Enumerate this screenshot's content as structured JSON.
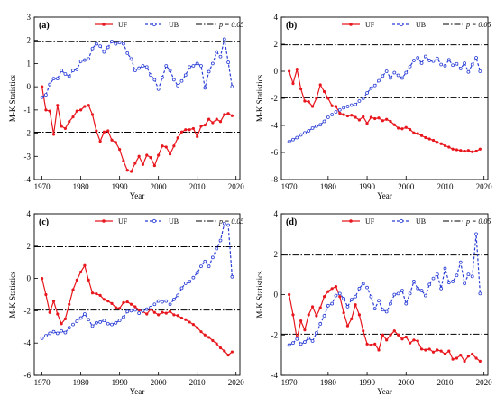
{
  "figure": {
    "colors": {
      "uf": "#e8161d",
      "ub": "#2b3fd6",
      "threshold": "#000000",
      "axis": "#000000"
    }
  },
  "chart_data": [
    {
      "type": "line",
      "panel_label": "(a)",
      "xlabel": "Year",
      "ylabel": "M-K Statistics",
      "xlim": [
        1968,
        2021
      ],
      "ylim": [
        -4,
        3
      ],
      "xticks": [
        1970,
        1980,
        1990,
        2000,
        2010,
        2020
      ],
      "yticks": [
        -4,
        -3,
        -2,
        -1,
        0,
        1,
        2,
        3
      ],
      "legend": {
        "position": "top",
        "entries": [
          "UF",
          "UB",
          "p = 0.05"
        ]
      },
      "thresholds": [
        1.96,
        -1.96
      ],
      "x": [
        1970,
        1971,
        1972,
        1973,
        1974,
        1975,
        1976,
        1977,
        1978,
        1979,
        1980,
        1981,
        1982,
        1983,
        1984,
        1985,
        1986,
        1987,
        1988,
        1989,
        1990,
        1991,
        1992,
        1993,
        1994,
        1995,
        1996,
        1997,
        1998,
        1999,
        2000,
        2001,
        2002,
        2003,
        2004,
        2005,
        2006,
        2007,
        2008,
        2009,
        2010,
        2011,
        2012,
        2013,
        2014,
        2015,
        2016,
        2017,
        2018,
        2019
      ],
      "series": [
        {
          "name": "UF",
          "values": [
            0.0,
            -1.0,
            -1.05,
            -2.05,
            -0.8,
            -1.7,
            -1.8,
            -1.5,
            -1.3,
            -1.05,
            -1.0,
            -0.85,
            -0.8,
            -1.2,
            -1.9,
            -2.35,
            -1.95,
            -1.9,
            -2.3,
            -2.4,
            -2.7,
            -3.2,
            -3.6,
            -3.65,
            -3.3,
            -3.0,
            -3.35,
            -2.95,
            -3.05,
            -3.4,
            -2.95,
            -2.55,
            -2.6,
            -2.9,
            -2.55,
            -2.2,
            -1.95,
            -1.85,
            -1.85,
            -1.8,
            -2.15,
            -1.7,
            -1.65,
            -1.4,
            -1.55,
            -1.4,
            -1.5,
            -1.2,
            -1.15,
            -1.25
          ]
        },
        {
          "name": "UB",
          "values": [
            -0.45,
            -0.35,
            0.1,
            0.35,
            0.35,
            0.7,
            0.55,
            0.45,
            0.7,
            0.75,
            1.1,
            1.15,
            1.2,
            1.65,
            1.85,
            1.75,
            1.5,
            1.7,
            1.95,
            1.85,
            1.9,
            1.85,
            1.45,
            1.2,
            0.7,
            0.8,
            0.9,
            0.85,
            0.5,
            0.3,
            -0.1,
            0.4,
            0.9,
            0.7,
            0.3,
            0.05,
            0.25,
            0.5,
            0.85,
            0.9,
            1.0,
            0.9,
            -0.05,
            0.65,
            1.0,
            1.5,
            1.3,
            2.05,
            1.05,
            0.0
          ]
        }
      ]
    },
    {
      "type": "line",
      "panel_label": "(b)",
      "xlabel": "Year",
      "ylabel": "M-K Statistics",
      "xlim": [
        1968,
        2021
      ],
      "ylim": [
        -8,
        4
      ],
      "xticks": [
        1970,
        1980,
        1990,
        2000,
        2010,
        2020
      ],
      "yticks": [
        -8,
        -6,
        -4,
        -2,
        0,
        2,
        4
      ],
      "legend": {
        "position": "top",
        "entries": [
          "UF",
          "UB",
          "p = 0.05"
        ]
      },
      "thresholds": [
        1.96,
        -1.96
      ],
      "x": [
        1970,
        1971,
        1972,
        1973,
        1974,
        1975,
        1976,
        1977,
        1978,
        1979,
        1980,
        1981,
        1982,
        1983,
        1984,
        1985,
        1986,
        1987,
        1988,
        1989,
        1990,
        1991,
        1992,
        1993,
        1994,
        1995,
        1996,
        1997,
        1998,
        1999,
        2000,
        2001,
        2002,
        2003,
        2004,
        2005,
        2006,
        2007,
        2008,
        2009,
        2010,
        2011,
        2012,
        2013,
        2014,
        2015,
        2016,
        2017,
        2018,
        2019
      ],
      "series": [
        {
          "name": "UF",
          "values": [
            0.0,
            -0.9,
            0.15,
            -1.3,
            -2.2,
            -2.25,
            -2.6,
            -2.0,
            -1.0,
            -1.5,
            -2.0,
            -2.55,
            -2.6,
            -3.1,
            -3.2,
            -3.3,
            -3.25,
            -3.4,
            -3.6,
            -3.35,
            -3.85,
            -3.4,
            -3.5,
            -3.45,
            -3.65,
            -3.55,
            -3.7,
            -3.95,
            -4.2,
            -4.25,
            -4.15,
            -4.3,
            -4.55,
            -4.6,
            -4.75,
            -4.9,
            -5.0,
            -5.1,
            -5.25,
            -5.35,
            -5.5,
            -5.6,
            -5.75,
            -5.8,
            -5.85,
            -5.9,
            -5.85,
            -5.95,
            -5.9,
            -5.75
          ]
        },
        {
          "name": "UB",
          "values": [
            -5.2,
            -5.05,
            -4.9,
            -4.7,
            -4.55,
            -4.4,
            -4.2,
            -4.05,
            -3.95,
            -3.7,
            -3.4,
            -3.2,
            -3.0,
            -2.85,
            -2.7,
            -2.6,
            -2.5,
            -2.45,
            -2.2,
            -2.0,
            -1.6,
            -1.25,
            -1.05,
            -0.7,
            -0.35,
            0.0,
            -0.5,
            -0.1,
            -0.3,
            -0.5,
            -0.1,
            0.35,
            0.8,
            1.0,
            0.6,
            1.1,
            0.8,
            0.75,
            0.95,
            0.5,
            0.4,
            0.85,
            0.45,
            0.55,
            0.2,
            0.6,
            -0.05,
            0.5,
            1.0,
            0.0
          ]
        }
      ]
    },
    {
      "type": "line",
      "panel_label": "(c)",
      "xlabel": "Year",
      "ylabel": "M-K Statistics",
      "xlim": [
        1968,
        2021
      ],
      "ylim": [
        -6,
        4
      ],
      "xticks": [
        1970,
        1980,
        1990,
        2000,
        2010,
        2020
      ],
      "yticks": [
        -6,
        -4,
        -2,
        0,
        2,
        4
      ],
      "legend": {
        "position": "top",
        "entries": [
          "UF",
          "UB",
          "p = 0.05"
        ]
      },
      "thresholds": [
        1.96,
        -1.96
      ],
      "x": [
        1970,
        1971,
        1972,
        1973,
        1974,
        1975,
        1976,
        1977,
        1978,
        1979,
        1980,
        1981,
        1982,
        1983,
        1984,
        1985,
        1986,
        1987,
        1988,
        1989,
        1990,
        1991,
        1992,
        1993,
        1994,
        1995,
        1996,
        1997,
        1998,
        1999,
        2000,
        2001,
        2002,
        2003,
        2004,
        2005,
        2006,
        2007,
        2008,
        2009,
        2010,
        2011,
        2012,
        2013,
        2014,
        2015,
        2016,
        2017,
        2018,
        2019
      ],
      "series": [
        {
          "name": "UF",
          "values": [
            0.0,
            -1.0,
            -2.1,
            -1.4,
            -2.2,
            -2.8,
            -2.5,
            -1.6,
            -0.7,
            -0.1,
            0.4,
            0.8,
            -0.1,
            -0.9,
            -0.95,
            -1.05,
            -1.3,
            -1.4,
            -1.55,
            -1.8,
            -1.85,
            -1.5,
            -1.45,
            -1.6,
            -1.75,
            -1.95,
            -2.05,
            -2.2,
            -1.9,
            -2.1,
            -2.25,
            -2.1,
            -2.15,
            -2.05,
            -2.25,
            -2.3,
            -2.45,
            -2.55,
            -2.7,
            -2.85,
            -3.05,
            -3.3,
            -3.5,
            -3.65,
            -3.85,
            -4.05,
            -4.3,
            -4.5,
            -4.75,
            -4.55
          ]
        },
        {
          "name": "UB",
          "values": [
            -3.7,
            -3.55,
            -3.4,
            -3.3,
            -3.4,
            -3.25,
            -3.35,
            -3.05,
            -2.85,
            -2.65,
            -2.45,
            -2.2,
            -2.55,
            -2.95,
            -2.75,
            -2.7,
            -2.6,
            -2.8,
            -2.85,
            -2.75,
            -2.6,
            -2.4,
            -2.05,
            -2.0,
            -1.95,
            -2.15,
            -2.0,
            -1.9,
            -1.8,
            -1.6,
            -1.4,
            -1.45,
            -1.4,
            -1.6,
            -1.3,
            -1.05,
            -0.6,
            -0.3,
            -0.2,
            0.05,
            0.35,
            0.75,
            1.05,
            0.75,
            1.3,
            1.85,
            2.35,
            3.4,
            3.3,
            0.1
          ]
        }
      ]
    },
    {
      "type": "line",
      "panel_label": "(d)",
      "xlabel": "Year",
      "ylabel": "M-K Statistics",
      "xlim": [
        1968,
        2021
      ],
      "ylim": [
        -4,
        4
      ],
      "xticks": [
        1970,
        1980,
        1990,
        2000,
        2010,
        2020
      ],
      "yticks": [
        -4,
        -2,
        0,
        2,
        4
      ],
      "legend": {
        "position": "top",
        "entries": [
          "UF",
          "UB",
          "p = 0.05"
        ]
      },
      "thresholds": [
        1.96,
        -1.96
      ],
      "x": [
        1970,
        1971,
        1972,
        1973,
        1974,
        1975,
        1976,
        1977,
        1978,
        1979,
        1980,
        1981,
        1982,
        1983,
        1984,
        1985,
        1986,
        1987,
        1988,
        1989,
        1990,
        1991,
        1992,
        1993,
        1994,
        1995,
        1996,
        1997,
        1998,
        1999,
        2000,
        2001,
        2002,
        2003,
        2004,
        2005,
        2006,
        2007,
        2008,
        2009,
        2010,
        2011,
        2012,
        2013,
        2014,
        2015,
        2016,
        2017,
        2018,
        2019
      ],
      "series": [
        {
          "name": "UF",
          "values": [
            0.0,
            -1.0,
            -2.2,
            -1.3,
            -1.75,
            -1.0,
            -0.6,
            -1.05,
            -0.65,
            -0.1,
            0.15,
            0.3,
            0.4,
            -0.1,
            -0.9,
            -1.55,
            -1.2,
            -0.5,
            -1.0,
            -1.8,
            -2.45,
            -2.5,
            -2.45,
            -2.75,
            -2.0,
            -2.25,
            -2.0,
            -1.8,
            -2.0,
            -2.2,
            -2.1,
            -2.4,
            -2.25,
            -2.3,
            -2.7,
            -2.75,
            -2.7,
            -2.85,
            -2.75,
            -2.8,
            -2.95,
            -2.8,
            -3.2,
            -3.15,
            -3.0,
            -3.3,
            -3.05,
            -2.95,
            -3.15,
            -3.3
          ]
        },
        {
          "name": "UB",
          "values": [
            -2.5,
            -2.4,
            -2.2,
            -2.45,
            -2.35,
            -2.15,
            -2.3,
            -1.9,
            -1.45,
            -1.05,
            -0.55,
            -0.45,
            -0.05,
            0.05,
            -0.2,
            -0.6,
            -0.25,
            -0.1,
            0.3,
            0.55,
            0.35,
            -0.1,
            -0.7,
            -0.3,
            -0.75,
            -0.85,
            -0.45,
            0.0,
            0.05,
            0.2,
            -0.45,
            0.05,
            0.65,
            0.3,
            0.2,
            -0.05,
            0.5,
            0.8,
            1.0,
            0.3,
            1.3,
            0.6,
            0.65,
            0.95,
            1.6,
            0.55,
            1.0,
            0.9,
            3.0,
            0.05
          ]
        }
      ]
    }
  ]
}
